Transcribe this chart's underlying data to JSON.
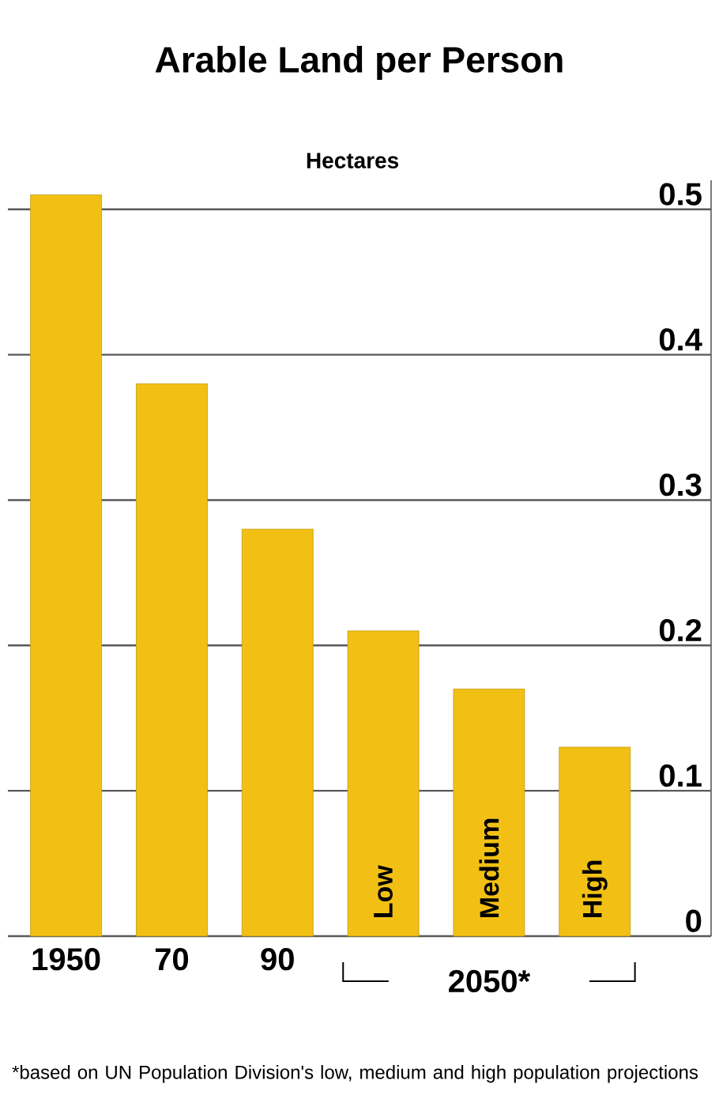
{
  "chart_data": {
    "type": "bar",
    "title": "Arable Land per Person",
    "ylabel": "Hectares",
    "categories": [
      "1950",
      "70",
      "90",
      "Low",
      "Medium",
      "High"
    ],
    "values": [
      0.51,
      0.38,
      0.28,
      0.21,
      0.17,
      0.13
    ],
    "color": "#f2c014",
    "ylim": [
      0,
      0.52
    ],
    "yticks": [
      0,
      0.1,
      0.2,
      0.3,
      0.4,
      0.5
    ],
    "grid": "y",
    "annotations": [
      "2050*",
      "*based on UN Population Division's low, medium and high population projections"
    ]
  }
}
